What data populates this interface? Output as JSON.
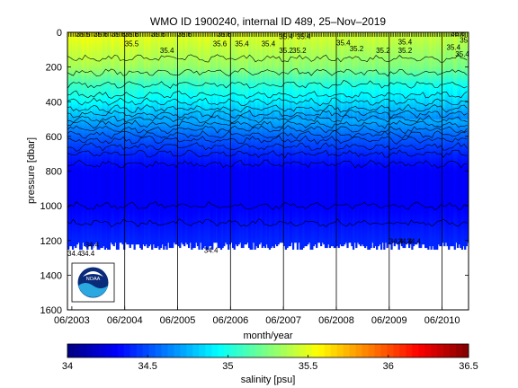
{
  "chart_data": {
    "type": "heatmap",
    "title": "WMO ID 1900240, internal ID 489, 25–Nov–2019",
    "xlabel": "month/year",
    "ylabel": "pressure [dbar]",
    "x_ticks": [
      "06/2003",
      "06/2004",
      "06/2005",
      "06/2006",
      "06/2007",
      "06/2008",
      "06/2009",
      "06/2010"
    ],
    "x_range": [
      "2003-05",
      "2010-12"
    ],
    "y_ticks": [
      0,
      200,
      400,
      600,
      800,
      1000,
      1200,
      1400,
      1600
    ],
    "ylim": [
      0,
      1600
    ],
    "y_reversed": true,
    "colorbar": {
      "label": "salinity [psu]",
      "ticks": [
        34,
        34.5,
        35,
        35.5,
        36,
        36.5
      ],
      "range": [
        34,
        36.5
      ],
      "colormap": "jet"
    },
    "salinity_profile": [
      {
        "pressure": 0,
        "salinity": 35.55
      },
      {
        "pressure": 100,
        "salinity": 35.45
      },
      {
        "pressure": 200,
        "salinity": 35.35
      },
      {
        "pressure": 300,
        "salinity": 35.1
      },
      {
        "pressure": 400,
        "salinity": 34.95
      },
      {
        "pressure": 500,
        "salinity": 34.75
      },
      {
        "pressure": 600,
        "salinity": 34.55
      },
      {
        "pressure": 700,
        "salinity": 34.4
      },
      {
        "pressure": 800,
        "salinity": 34.3
      },
      {
        "pressure": 1000,
        "salinity": 34.3
      },
      {
        "pressure": 1200,
        "salinity": 34.4
      }
    ],
    "max_profile_pressure": 1250,
    "contour_labels": [
      {
        "text": "35.5",
        "month": 2,
        "pressure": 25
      },
      {
        "text": "35.6",
        "month": 6,
        "pressure": 25
      },
      {
        "text": "35.6",
        "month": 10,
        "pressure": 25
      },
      {
        "text": "35.6",
        "month": 13,
        "pressure": 25
      },
      {
        "text": "35.6",
        "month": 19,
        "pressure": 25
      },
      {
        "text": "35.5",
        "month": 13,
        "pressure": 80
      },
      {
        "text": "35.6",
        "month": 25,
        "pressure": 25
      },
      {
        "text": "35.4",
        "month": 21,
        "pressure": 120
      },
      {
        "text": "35.6",
        "month": 34,
        "pressure": 25
      },
      {
        "text": "35.6",
        "month": 33,
        "pressure": 80
      },
      {
        "text": "35.4",
        "month": 38,
        "pressure": 80
      },
      {
        "text": "35.4",
        "month": 44,
        "pressure": 80
      },
      {
        "text": "35.4",
        "month": 48,
        "pressure": 40
      },
      {
        "text": "35.4",
        "month": 52,
        "pressure": 40
      },
      {
        "text": "35.2",
        "month": 48,
        "pressure": 120
      },
      {
        "text": "35.2",
        "month": 51,
        "pressure": 120
      },
      {
        "text": "35.4",
        "month": 61,
        "pressure": 75
      },
      {
        "text": "35.2",
        "month": 64,
        "pressure": 110
      },
      {
        "text": "35.4",
        "month": 75,
        "pressure": 70
      },
      {
        "text": "35.2",
        "month": 70,
        "pressure": 120
      },
      {
        "text": "35.2",
        "month": 75,
        "pressure": 120
      },
      {
        "text": "35.4",
        "month": 89,
        "pressure": 60
      },
      {
        "text": "35.4",
        "month": 86,
        "pressure": 100
      },
      {
        "text": "35.4",
        "month": 91,
        "pressure": 20
      },
      {
        "text": "35.6",
        "month": 87,
        "pressure": 20
      },
      {
        "text": "35.4",
        "month": 88,
        "pressure": 140
      },
      {
        "text": "34.4",
        "month": 73,
        "pressure": 1220
      },
      {
        "text": "34.4",
        "month": 75,
        "pressure": 1220
      },
      {
        "text": "34.4",
        "month": 77,
        "pressure": 1220
      },
      {
        "text": "34.4",
        "month": 31,
        "pressure": 1270
      },
      {
        "text": "34.4",
        "month": 0,
        "pressure": 1290
      },
      {
        "text": "34.4",
        "month": 3,
        "pressure": 1290
      },
      {
        "text": "34.4",
        "month": 4,
        "pressure": 1240
      }
    ]
  }
}
